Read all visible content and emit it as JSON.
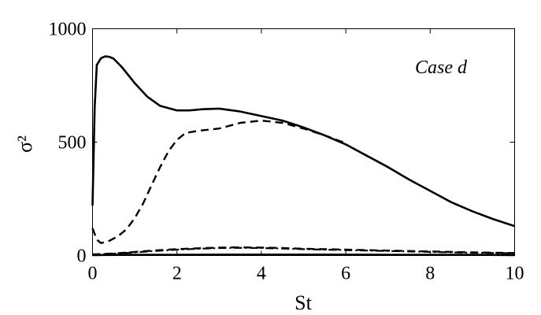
{
  "chart_data": {
    "type": "line",
    "title": "",
    "xlabel": "St",
    "ylabel": "σ²",
    "xlim": [
      0,
      10
    ],
    "ylim": [
      0,
      1000
    ],
    "xticks": [
      0,
      2,
      4,
      6,
      8,
      10
    ],
    "yticks": [
      0,
      500,
      1000
    ],
    "grid": false,
    "annotation": "Case d",
    "series": [
      {
        "style": "solid",
        "x": [
          0,
          0.05,
          0.1,
          0.2,
          0.3,
          0.4,
          0.5,
          0.7,
          1.0,
          1.3,
          1.6,
          2.0,
          2.3,
          2.6,
          3.0,
          3.5,
          4.0,
          4.5,
          5.0,
          5.5,
          6.0,
          6.5,
          7.0,
          7.5,
          8.0,
          8.5,
          9.0,
          9.5,
          10.0
        ],
        "y": [
          220,
          650,
          840,
          870,
          878,
          876,
          868,
          830,
          760,
          700,
          660,
          640,
          640,
          645,
          648,
          635,
          615,
          595,
          565,
          530,
          490,
          440,
          390,
          335,
          285,
          235,
          195,
          160,
          130
        ]
      },
      {
        "style": "dashed",
        "x": [
          0,
          0.1,
          0.2,
          0.4,
          0.6,
          0.8,
          1.0,
          1.2,
          1.4,
          1.6,
          1.8,
          2.0,
          2.2,
          2.5,
          3.0,
          3.5,
          4.0,
          4.5,
          5.0,
          5.5,
          6.0
        ],
        "y": [
          120,
          70,
          55,
          65,
          85,
          115,
          165,
          230,
          310,
          390,
          460,
          510,
          540,
          550,
          560,
          585,
          595,
          585,
          560,
          530,
          495
        ]
      },
      {
        "style": "dash-dot",
        "x": [
          0,
          0.5,
          1.0,
          1.5,
          2.0,
          2.5,
          3.0,
          3.5,
          4.0,
          4.5,
          5.0,
          6.0,
          7.0,
          8.0,
          9.0,
          10.0
        ],
        "y": [
          5,
          8,
          14,
          20,
          26,
          30,
          33,
          34,
          33,
          31,
          28,
          24,
          20,
          16,
          12,
          10
        ]
      },
      {
        "style": "dashed",
        "x": [
          0,
          0.5,
          1.0,
          1.5,
          2.0,
          2.5,
          3.0,
          3.5,
          4.0,
          4.5,
          5.0,
          6.0,
          7.0,
          8.0,
          9.0,
          10.0
        ],
        "y": [
          5,
          9,
          16,
          23,
          28,
          32,
          35,
          36,
          35,
          33,
          30,
          26,
          22,
          18,
          14,
          11
        ]
      },
      {
        "style": "solid",
        "x": [
          0,
          1,
          2,
          3,
          4,
          5,
          6,
          7,
          8,
          9,
          10
        ],
        "y": [
          2,
          3,
          3,
          4,
          4,
          4,
          4,
          3,
          3,
          3,
          2
        ]
      }
    ]
  }
}
